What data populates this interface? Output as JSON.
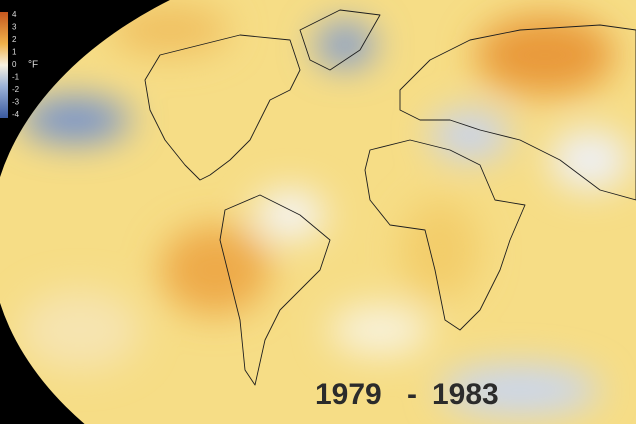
{
  "legend": {
    "ticks": [
      4,
      3,
      2,
      1,
      0,
      -1,
      -2,
      -3,
      -4
    ],
    "unit": "°F"
  },
  "period": {
    "start": "1979",
    "separator": "-",
    "end": "1983"
  }
}
